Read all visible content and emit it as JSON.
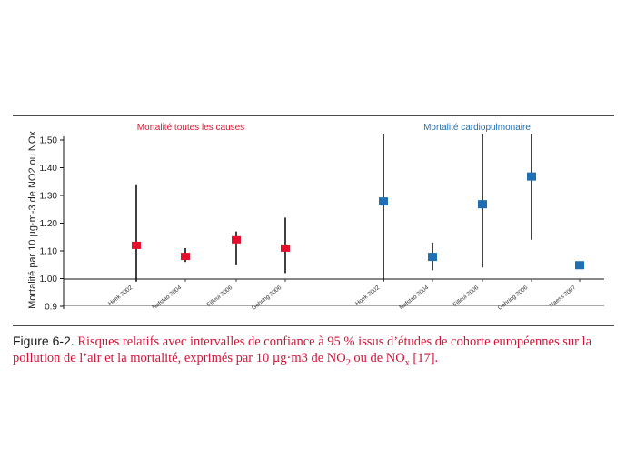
{
  "colors": {
    "all_cause": "#e3102d",
    "cardio": "#1f6fb5",
    "axis": "#111111",
    "caption_red": "#d2143a"
  },
  "chart_data": {
    "type": "scatter",
    "ylabel": "Mortalité par 10 µg·m-3 de NO2 ou NOx",
    "ylim": [
      0.9,
      1.55
    ],
    "yticks": [
      "0.9",
      "1.00",
      "1.10",
      "1.20",
      "1.30",
      "1.40",
      "1.50"
    ],
    "grid": false,
    "legend_placement": "none",
    "groups": [
      {
        "title": "Mortalité toutes les causes",
        "color": "#e3102d",
        "points": [
          {
            "label": "Hoek 2002",
            "value": 1.12,
            "lower": 0.99,
            "upper": 1.34
          },
          {
            "label": "Nafstad 2004",
            "value": 1.08,
            "lower": 1.06,
            "upper": 1.11
          },
          {
            "label": "Filleul 2006",
            "value": 1.14,
            "lower": 1.05,
            "upper": 1.17
          },
          {
            "label": "Gehring 2006",
            "value": 1.11,
            "lower": 1.02,
            "upper": 1.22
          }
        ]
      },
      {
        "title": "Mortalité cardiopulmonaire",
        "color": "#1f6fb5",
        "points": [
          {
            "label": "Hoek 2002",
            "value": 1.28,
            "lower": 0.99,
            "upper": 1.53
          },
          {
            "label": "Nafstad 2004",
            "value": 1.08,
            "lower": 1.03,
            "upper": 1.13
          },
          {
            "label": "Filleul 2006",
            "value": 1.27,
            "lower": 1.04,
            "upper": 1.55
          },
          {
            "label": "Gehring 2006",
            "value": 1.37,
            "lower": 1.14,
            "upper": 1.55
          },
          {
            "label": "Naess 2007",
            "value": 1.05,
            "lower": null,
            "upper": null
          }
        ]
      }
    ]
  },
  "caption": {
    "figure_number": "Figure 6-2.",
    "text_part1": "Risques relatifs avec intervalles de confiance à 95 % issus d’études de cohorte européennes sur la pollution de l’air et la mortalité, exprimés par 10 µg·m3 de NO",
    "sub1": "2",
    "text_part2": " ou de NO",
    "sub2": "x",
    "text_part3": " [17]."
  }
}
